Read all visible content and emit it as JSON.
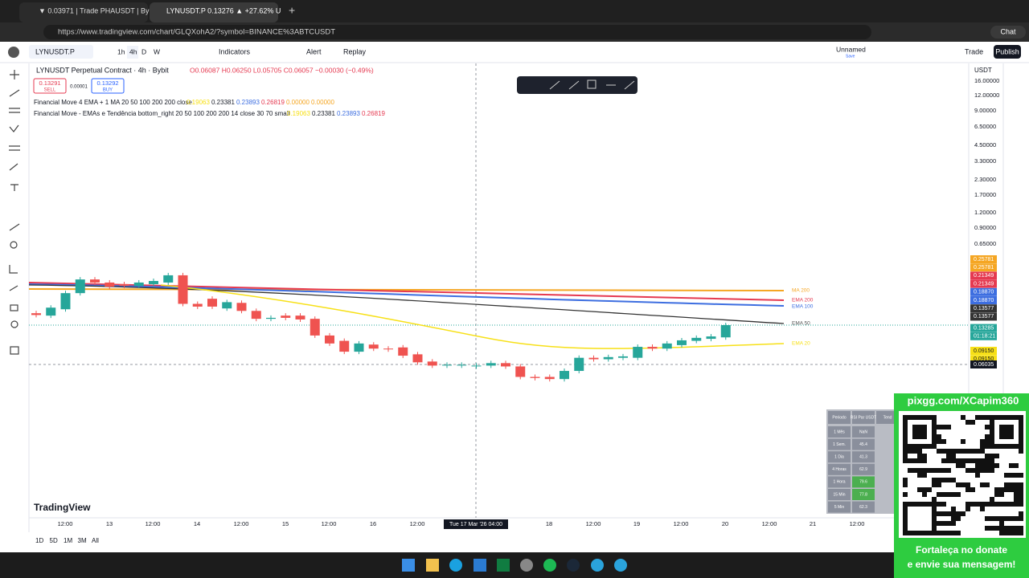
{
  "browser": {
    "tabs": [
      "▼ 0.03971 | Trade PHAUSDT | Byb",
      "LYNUSDT.P 0.13276 ▲ +27.62% U"
    ],
    "url": "https://www.tradingview.com/chart/GLQXohA2/?symbol=BINANCE%3ABTCUSDT",
    "chat": "Chat"
  },
  "toolbar": {
    "symbol": "LYNUSDT.P",
    "intervals": [
      "1h",
      "4h",
      "D",
      "W"
    ],
    "indicators": "Indicators",
    "alert": "Alert",
    "replay": "Replay",
    "layout": "Unnamed",
    "save": "Save",
    "trade": "Trade",
    "publish": "Publish"
  },
  "legend": {
    "title": "LYNUSDT Perpetual Contract · 4h · Bybit",
    "ohlc": "O0.06087 H0.06250 L0.05705 C0.06057 −0.00030 (−0.49%)",
    "sell": "0.13291",
    "sell_label": "SELL",
    "spread": "0.00001",
    "buy": "0.13292",
    "buy_label": "BUY",
    "indicator1": "Financial Move 4 EMA + 1 MA 20 50 100 200 200 close",
    "indicator1_values": [
      "0.19063",
      "0.23381",
      "0.23893",
      "0.26819",
      "0.00000",
      "0.00000"
    ],
    "indicator2": "Financial Move - EMAs e Tendência bottom_right 20 50 100 200 200 14 close 30 70 small",
    "indicator2_values": [
      "0.19063",
      "0.23381",
      "0.23893",
      "0.26819"
    ]
  },
  "chart": {
    "currency": "USDT",
    "price_ticks": [
      "16.00000",
      "12.00000",
      "9.00000",
      "6.50000",
      "4.50000",
      "3.30000",
      "2.30000",
      "1.70000",
      "1.20000",
      "0.90000",
      "0.65000"
    ],
    "price_labels": [
      {
        "text": "0.25781",
        "color": "#f5a623"
      },
      {
        "text": "0.25781",
        "color": "#f5a623"
      },
      {
        "text": "0.21349",
        "color": "#e53950"
      },
      {
        "text": "0.21349",
        "color": "#e53950"
      },
      {
        "text": "0.18870",
        "color": "#3d6ee0"
      },
      {
        "text": "0.18870",
        "color": "#3d6ee0"
      },
      {
        "text": "0.13577",
        "color": "#333333"
      },
      {
        "text": "0.13577",
        "color": "#333333"
      },
      {
        "text": "0.13285",
        "color": "#26a69a"
      },
      {
        "text": "01:18:21",
        "color": "#26a69a"
      },
      {
        "text": "0.09150",
        "color": "#f7e017"
      },
      {
        "text": "0.09150",
        "color": "#f7e017"
      }
    ],
    "crosshair_price": 0.06035,
    "crosshair_label": "0.06035",
    "ma_labels": [
      "MA 200",
      "EMA 200",
      "EMA 100",
      "EMA 50",
      "EMA 20"
    ],
    "time_labels": [
      "12:00",
      "13",
      "12:00",
      "14",
      "12:00",
      "15",
      "12:00",
      "16",
      "12:00",
      "18",
      "12:00",
      "19",
      "12:00",
      "20",
      "12:00",
      "21",
      "12:00"
    ],
    "crosshair_time": "Tue 17 Mar '26  04:00",
    "candles": [
      [
        0.169,
        0.163
      ],
      [
        0.161,
        0.189
      ],
      [
        0.183,
        0.253
      ],
      [
        0.253,
        0.333
      ],
      [
        0.333,
        0.313
      ],
      [
        0.313,
        0.288
      ],
      [
        0.303,
        0.293
      ],
      [
        0.293,
        0.313
      ],
      [
        0.303,
        0.323
      ],
      [
        0.313,
        0.362
      ],
      [
        0.362,
        0.204
      ],
      [
        0.204,
        0.193
      ],
      [
        0.226,
        0.193
      ],
      [
        0.186,
        0.211
      ],
      [
        0.208,
        0.177
      ],
      [
        0.177,
        0.151
      ],
      [
        0.151,
        0.154
      ],
      [
        0.161,
        0.154
      ],
      [
        0.161,
        0.149
      ],
      [
        0.151,
        0.108
      ],
      [
        0.108,
        0.092
      ],
      [
        0.097,
        0.078
      ],
      [
        0.078,
        0.092
      ],
      [
        0.09,
        0.083
      ],
      [
        0.083,
        0.082
      ],
      [
        0.085,
        0.072
      ],
      [
        0.074,
        0.063
      ],
      [
        0.064,
        0.059
      ],
      [
        0.06,
        0.06
      ],
      [
        0.06,
        0.06
      ],
      [
        0.059,
        0.059
      ],
      [
        0.059,
        0.062
      ],
      [
        0.062,
        0.058
      ],
      [
        0.058,
        0.047
      ],
      [
        0.047,
        0.046
      ],
      [
        0.047,
        0.045
      ],
      [
        0.045,
        0.053
      ],
      [
        0.053,
        0.069
      ],
      [
        0.069,
        0.067
      ],
      [
        0.067,
        0.07
      ],
      [
        0.069,
        0.071
      ],
      [
        0.069,
        0.086
      ],
      [
        0.086,
        0.083
      ],
      [
        0.083,
        0.092
      ],
      [
        0.089,
        0.098
      ],
      [
        0.097,
        0.103
      ],
      [
        0.101,
        0.106
      ],
      [
        0.104,
        0.133
      ]
    ],
    "ranges": [
      "1D",
      "5D",
      "1M",
      "3M",
      "All"
    ],
    "brand": "TradingView"
  },
  "table": {
    "header": [
      "Periodo",
      "RSI Par USDT",
      "Tend"
    ],
    "rows": [
      [
        "1 Mês",
        "NaN"
      ],
      [
        "1 Sem.",
        "45.4"
      ],
      [
        "1 Dia",
        "41.3"
      ],
      [
        "4 Horas",
        "62.9"
      ],
      [
        "1 Hora",
        "79.6"
      ],
      [
        "15 Min",
        "77.8"
      ],
      [
        "5 Min",
        "62.3"
      ]
    ]
  },
  "overlay": {
    "url": "pixgg.com/XCapim360",
    "message": "Fortaleça no donate e envie sua mensagem!"
  }
}
